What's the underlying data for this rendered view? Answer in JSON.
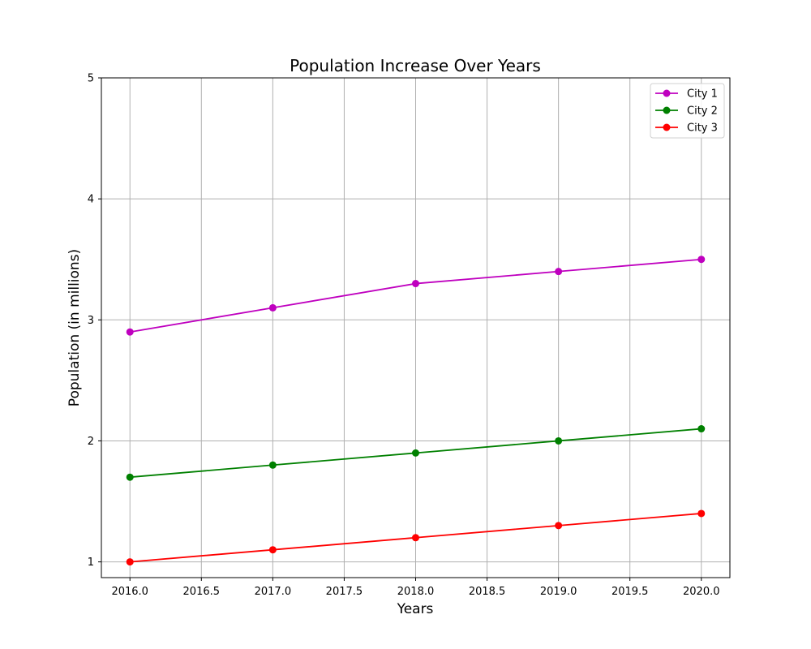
{
  "chart_data": {
    "type": "line",
    "title": "Population Increase Over Years",
    "xlabel": "Years",
    "ylabel": "Population (in millions)",
    "xlim": [
      2015.8,
      2020.2
    ],
    "ylim": [
      0.87,
      5.0
    ],
    "xticks": [
      2016.0,
      2016.5,
      2017.0,
      2017.5,
      2018.0,
      2018.5,
      2019.0,
      2019.5,
      2020.0
    ],
    "xtick_labels": [
      "2016.0",
      "2016.5",
      "2017.0",
      "2017.5",
      "2018.0",
      "2018.5",
      "2019.0",
      "2019.5",
      "2020.0"
    ],
    "yticks": [
      1,
      2,
      3,
      4,
      5
    ],
    "ytick_labels": [
      "1",
      "2",
      "3",
      "4",
      "5"
    ],
    "grid": true,
    "legend_position": "top-right",
    "x": [
      2016,
      2017,
      2018,
      2019,
      2020
    ],
    "series": [
      {
        "name": "City 1",
        "color": "#bf00bf",
        "values": [
          2.9,
          3.1,
          3.3,
          3.4,
          3.5
        ]
      },
      {
        "name": "City 2",
        "color": "#008000",
        "values": [
          1.7,
          1.8,
          1.9,
          2.0,
          2.1
        ]
      },
      {
        "name": "City 3",
        "color": "#ff0000",
        "values": [
          1.0,
          1.1,
          1.2,
          1.3,
          1.4
        ]
      }
    ]
  }
}
